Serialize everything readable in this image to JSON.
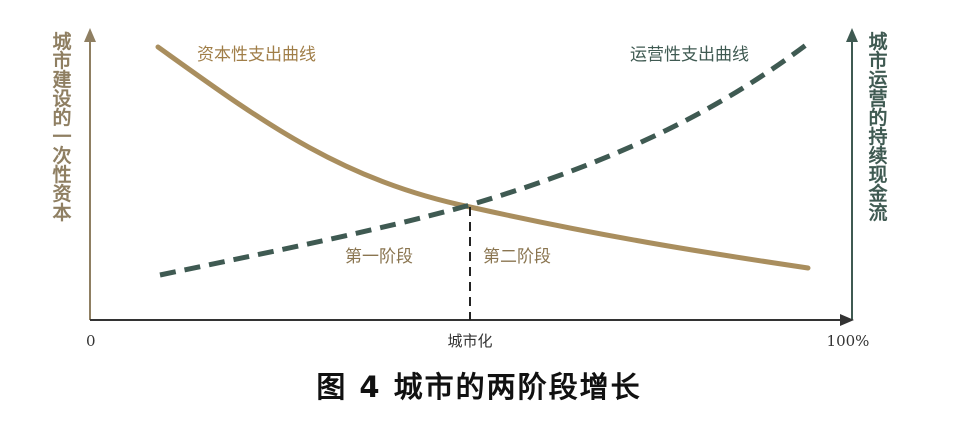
{
  "labels": {
    "left_axis": "城市建设的一次性资本",
    "right_axis": "城市运营的持续现金流",
    "capital_curve": "资本性支出曲线",
    "operating_curve": "运营性支出曲线",
    "x_start": "0",
    "x_mid": "城市化",
    "x_end": "100%",
    "phase_one": "第一阶段",
    "phase_two": "第二阶段",
    "caption": "图 4 城市的两阶段增长"
  },
  "colors": {
    "axis_left": "#8f7f62",
    "axis_right": "#3f5a52",
    "capital_curve": "#a98e5e",
    "operating_curve": "#3f5a52",
    "capital_text": "#a07e48",
    "operating_text": "#3f5a52",
    "phase_text": "#8a7550",
    "divider": "#222222"
  }
}
